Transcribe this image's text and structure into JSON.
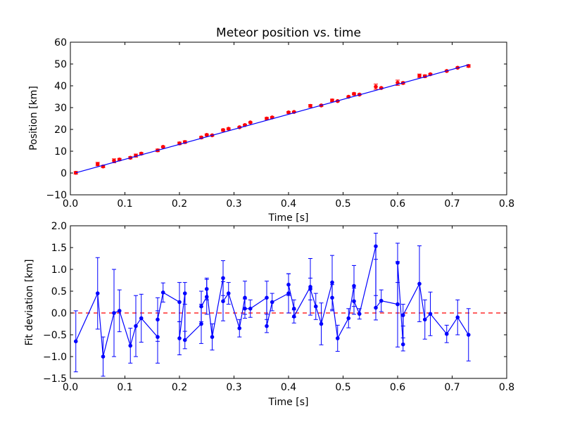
{
  "chart_data": [
    {
      "type": "scatter",
      "title": "Meteor position vs. time",
      "xlabel": "Time [s]",
      "ylabel": "Position [km]",
      "xlim": [
        0.0,
        0.8
      ],
      "ylim": [
        -10,
        60
      ],
      "x_ticks": [
        0.0,
        0.1,
        0.2,
        0.3,
        0.4,
        0.5,
        0.6,
        0.7,
        0.8
      ],
      "x_tick_labels": [
        "0.0",
        "0.1",
        "0.2",
        "0.3",
        "0.4",
        "0.5",
        "0.6",
        "0.7",
        "0.8"
      ],
      "y_ticks": [
        -10,
        0,
        10,
        20,
        30,
        40,
        50,
        60
      ],
      "y_tick_labels": [
        "−10",
        "0",
        "10",
        "20",
        "30",
        "40",
        "50",
        "60"
      ],
      "grid": false,
      "series": [
        {
          "kind": "errorbar-points",
          "color": "#ff0000",
          "x": [
            0.01,
            0.05,
            0.06,
            0.08,
            0.09,
            0.11,
            0.12,
            0.13,
            0.16,
            0.17,
            0.2,
            0.21,
            0.24,
            0.25,
            0.26,
            0.28,
            0.29,
            0.31,
            0.32,
            0.33,
            0.36,
            0.37,
            0.4,
            0.41,
            0.44,
            0.46,
            0.48,
            0.49,
            0.51,
            0.52,
            0.53,
            0.56,
            0.57,
            0.6,
            0.61,
            0.64,
            0.65,
            0.66,
            0.69,
            0.71,
            0.73
          ],
          "y": [
            0.1,
            4.1,
            3.0,
            5.6,
            6.2,
            7.0,
            8.0,
            8.9,
            10.4,
            12.0,
            13.6,
            14.2,
            16.3,
            17.5,
            17.3,
            19.7,
            20.3,
            21.0,
            22.0,
            23.2,
            25.0,
            25.5,
            27.8,
            28.0,
            30.8,
            31.0,
            33.3,
            33.0,
            35.0,
            36.3,
            36.0,
            39.6,
            39.0,
            41.4,
            41.3,
            44.6,
            44.4,
            45.3,
            46.8,
            48.3,
            49.1
          ],
          "yerr": [
            0.6,
            0.8,
            0.5,
            0.9,
            0.5,
            0.5,
            0.7,
            0.5,
            0.6,
            0.4,
            0.6,
            0.6,
            0.5,
            0.4,
            0.3,
            0.5,
            0.4,
            0.3,
            0.4,
            0.3,
            0.5,
            0.4,
            0.4,
            0.3,
            0.6,
            0.4,
            0.6,
            0.3,
            0.3,
            0.5,
            0.3,
            1.2,
            0.3,
            1.2,
            0.5,
            0.8,
            0.6,
            0.4,
            0.3,
            0.3,
            0.6
          ]
        },
        {
          "kind": "fit-line",
          "color": "#0000ff",
          "x": [
            0.01,
            0.73
          ],
          "y": [
            0.1,
            49.6
          ]
        }
      ]
    },
    {
      "type": "line",
      "title": "",
      "xlabel": "Time [s]",
      "ylabel": "Fit deviation [km]",
      "xlim": [
        0.0,
        0.8
      ],
      "ylim": [
        -1.5,
        2.0
      ],
      "x_ticks": [
        0.0,
        0.1,
        0.2,
        0.3,
        0.4,
        0.5,
        0.6,
        0.7,
        0.8
      ],
      "x_tick_labels": [
        "0.0",
        "0.1",
        "0.2",
        "0.3",
        "0.4",
        "0.5",
        "0.6",
        "0.7",
        "0.8"
      ],
      "y_ticks": [
        -1.5,
        -1.0,
        -0.5,
        0.0,
        0.5,
        1.0,
        1.5,
        2.0
      ],
      "y_tick_labels": [
        "−1.5",
        "−1.0",
        "−0.5",
        "0.0",
        "0.5",
        "1.0",
        "1.5",
        "2.0"
      ],
      "grid": false,
      "reference_line": {
        "y": 0.0,
        "color": "#ff0000",
        "style": "dashed"
      },
      "series": [
        {
          "kind": "errorbar-line",
          "color": "#0000ff",
          "x": [
            0.01,
            0.05,
            0.06,
            0.08,
            0.09,
            0.11,
            0.12,
            0.13,
            0.16,
            0.16,
            0.17,
            0.2,
            0.2,
            0.21,
            0.21,
            0.24,
            0.24,
            0.25,
            0.25,
            0.26,
            0.28,
            0.28,
            0.29,
            0.31,
            0.32,
            0.32,
            0.33,
            0.36,
            0.36,
            0.37,
            0.4,
            0.4,
            0.41,
            0.41,
            0.44,
            0.44,
            0.45,
            0.46,
            0.48,
            0.48,
            0.49,
            0.51,
            0.52,
            0.52,
            0.53,
            0.56,
            0.56,
            0.57,
            0.6,
            0.6,
            0.61,
            0.61,
            0.64,
            0.65,
            0.66,
            0.69,
            0.71,
            0.73
          ],
          "y": [
            -0.65,
            0.45,
            -1.0,
            0.0,
            0.05,
            -0.75,
            -0.3,
            -0.12,
            -0.55,
            -0.15,
            0.47,
            0.25,
            -0.58,
            0.45,
            -0.62,
            -0.25,
            0.15,
            0.37,
            0.55,
            -0.55,
            0.8,
            0.27,
            0.45,
            -0.35,
            0.35,
            0.1,
            0.1,
            0.35,
            -0.3,
            0.25,
            0.45,
            0.65,
            0.1,
            -0.08,
            0.6,
            0.55,
            0.15,
            -0.25,
            0.7,
            0.35,
            -0.58,
            -0.12,
            0.62,
            0.27,
            -0.02,
            1.53,
            0.12,
            0.28,
            0.2,
            1.15,
            -0.72,
            -0.05,
            0.67,
            -0.15,
            -0.02,
            -0.48,
            -0.1,
            -0.5
          ],
          "yerr": [
            0.7,
            0.82,
            0.45,
            1.0,
            0.48,
            0.4,
            0.7,
            0.55,
            0.6,
            0.5,
            0.22,
            0.45,
            0.38,
            0.25,
            0.2,
            0.45,
            0.35,
            0.4,
            0.25,
            0.3,
            0.4,
            0.45,
            0.25,
            0.2,
            0.38,
            0.22,
            0.2,
            0.38,
            0.15,
            0.2,
            0.45,
            0.25,
            0.2,
            0.15,
            0.65,
            0.25,
            0.3,
            0.48,
            0.62,
            0.3,
            0.3,
            0.22,
            0.47,
            0.3,
            0.12,
            0.3,
            0.28,
            0.25,
            0.98,
            0.45,
            0.15,
            0.25,
            0.87,
            0.45,
            0.5,
            0.2,
            0.4,
            0.6
          ]
        }
      ]
    }
  ]
}
